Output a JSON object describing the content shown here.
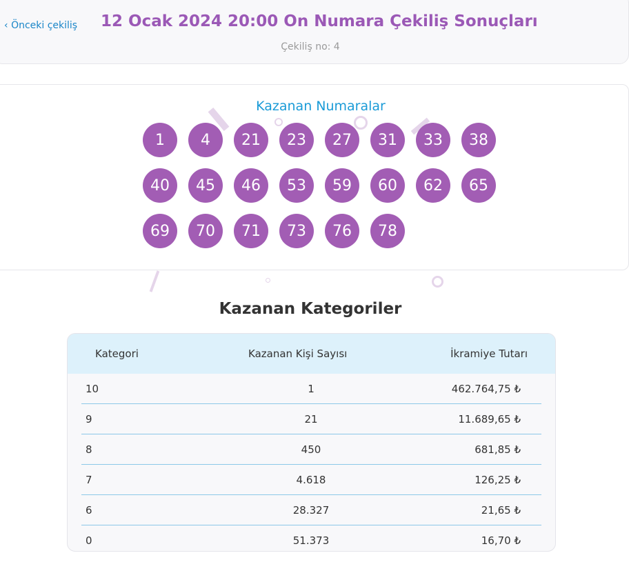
{
  "header": {
    "prev_label": "Önceki çekiliş",
    "title": "12 Ocak 2024 20:00 On Numara Çekiliş Sonuçları",
    "draw_no": "Çekiliş no: 4"
  },
  "numbers_title": "Kazanan Numaralar",
  "numbers": [
    "1",
    "4",
    "21",
    "23",
    "27",
    "31",
    "33",
    "38",
    "40",
    "45",
    "46",
    "53",
    "59",
    "60",
    "62",
    "65",
    "69",
    "70",
    "71",
    "73",
    "76",
    "78"
  ],
  "categories_title": "Kazanan Kategoriler",
  "table": {
    "headers": [
      "Kategori",
      "Kazanan Kişi Sayısı",
      "İkramiye Tutarı"
    ],
    "rows": [
      [
        "10",
        "1",
        "462.764,75 ₺"
      ],
      [
        "9",
        "21",
        "11.689,65 ₺"
      ],
      [
        "8",
        "450",
        "681,85 ₺"
      ],
      [
        "7",
        "4.618",
        "126,25 ₺"
      ],
      [
        "6",
        "28.327",
        "21,65 ₺"
      ],
      [
        "0",
        "51.373",
        "16,70 ₺"
      ]
    ]
  },
  "colors": {
    "accent": "#9b59b6",
    "ball": "#a25db4",
    "link": "#1a86c8",
    "table_header": "#ddf1fb"
  }
}
